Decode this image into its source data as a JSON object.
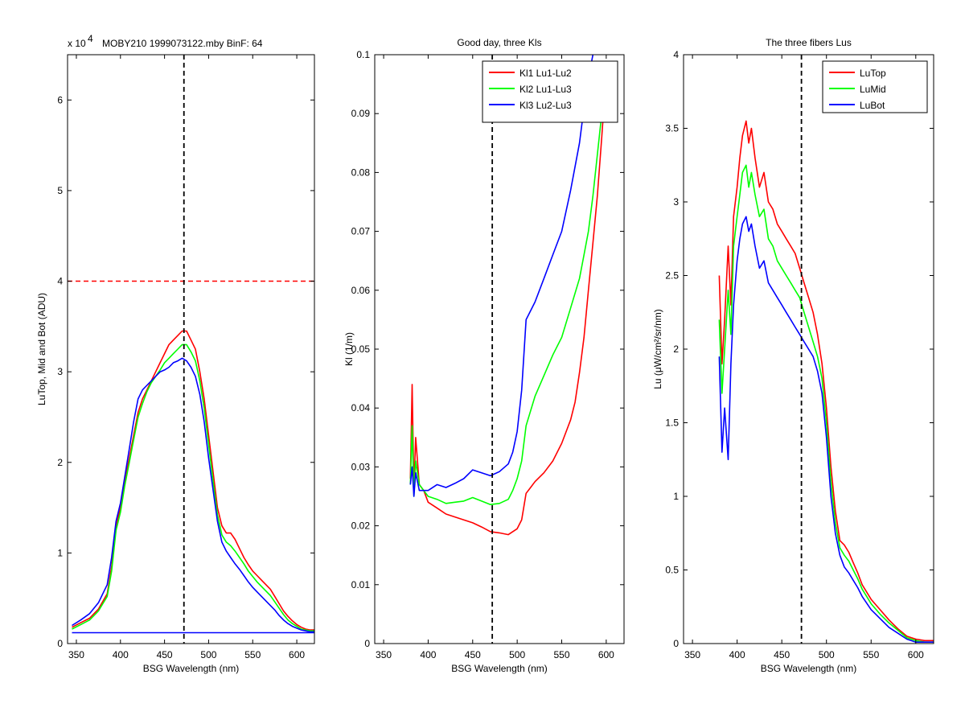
{
  "figure": {
    "background": "#ffffff"
  },
  "colors": {
    "red": "#ff0000",
    "green": "#00ff00",
    "blue": "#0000ff",
    "black": "#000000"
  },
  "chart_data": [
    {
      "type": "line",
      "title": "MOBY210  1999073122.mby BinF: 64",
      "exponent_label": "x 10",
      "exponent_power": "4",
      "xlabel": "BSG Wavelength (nm)",
      "ylabel": "LuTop, Mid and Bot (ADU)",
      "xlim": [
        340,
        620
      ],
      "ylim": [
        0,
        6.5
      ],
      "xticks": [
        350,
        400,
        450,
        500,
        550,
        600
      ],
      "yticks": [
        0,
        1,
        2,
        3,
        4,
        5,
        6
      ],
      "vline": {
        "x": 472,
        "color": "#000000",
        "style": "dashed"
      },
      "hline": {
        "y": 4,
        "color": "#ff0000",
        "style": "dashed"
      },
      "series": [
        {
          "color": "#ff0000",
          "x": [
            345,
            355,
            365,
            375,
            385,
            390,
            395,
            400,
            405,
            410,
            415,
            420,
            425,
            430,
            435,
            440,
            445,
            450,
            455,
            460,
            465,
            470,
            475,
            480,
            485,
            490,
            495,
            500,
            505,
            510,
            515,
            520,
            525,
            530,
            535,
            540,
            545,
            550,
            555,
            560,
            565,
            570,
            575,
            580,
            585,
            590,
            595,
            600,
            605,
            610,
            615,
            620
          ],
          "y": [
            0.18,
            0.23,
            0.28,
            0.38,
            0.55,
            0.85,
            1.3,
            1.5,
            1.8,
            2.05,
            2.3,
            2.55,
            2.7,
            2.8,
            2.9,
            3.0,
            3.1,
            3.2,
            3.3,
            3.35,
            3.4,
            3.45,
            3.45,
            3.35,
            3.25,
            3.0,
            2.7,
            2.3,
            1.9,
            1.5,
            1.3,
            1.22,
            1.22,
            1.15,
            1.05,
            0.95,
            0.87,
            0.8,
            0.75,
            0.7,
            0.65,
            0.6,
            0.52,
            0.44,
            0.36,
            0.3,
            0.25,
            0.21,
            0.18,
            0.16,
            0.15,
            0.15
          ]
        },
        {
          "color": "#00ff00",
          "x": [
            345,
            355,
            365,
            375,
            385,
            390,
            395,
            400,
            405,
            410,
            415,
            420,
            425,
            430,
            435,
            440,
            445,
            450,
            455,
            460,
            465,
            470,
            475,
            480,
            485,
            490,
            495,
            500,
            505,
            510,
            515,
            520,
            525,
            530,
            535,
            540,
            545,
            550,
            555,
            560,
            565,
            570,
            575,
            580,
            585,
            590,
            595,
            600,
            605,
            610,
            615,
            620
          ],
          "y": [
            0.16,
            0.21,
            0.26,
            0.36,
            0.52,
            0.8,
            1.25,
            1.45,
            1.75,
            2.0,
            2.25,
            2.5,
            2.65,
            2.78,
            2.88,
            2.95,
            3.02,
            3.1,
            3.15,
            3.2,
            3.25,
            3.3,
            3.3,
            3.22,
            3.12,
            2.9,
            2.6,
            2.2,
            1.8,
            1.42,
            1.2,
            1.12,
            1.08,
            1.02,
            0.95,
            0.88,
            0.8,
            0.74,
            0.68,
            0.63,
            0.58,
            0.53,
            0.46,
            0.39,
            0.32,
            0.26,
            0.22,
            0.19,
            0.16,
            0.15,
            0.14,
            0.14
          ]
        },
        {
          "color": "#0000ff",
          "x": [
            345,
            355,
            365,
            375,
            385,
            390,
            395,
            400,
            405,
            410,
            415,
            420,
            425,
            430,
            435,
            440,
            445,
            450,
            455,
            460,
            465,
            470,
            475,
            480,
            485,
            490,
            495,
            500,
            505,
            510,
            515,
            520,
            525,
            530,
            535,
            540,
            545,
            550,
            555,
            560,
            565,
            570,
            575,
            580,
            585,
            590,
            595,
            600,
            605,
            610,
            615,
            620
          ],
          "y": [
            0.2,
            0.26,
            0.33,
            0.45,
            0.65,
            0.95,
            1.35,
            1.55,
            1.85,
            2.15,
            2.45,
            2.7,
            2.8,
            2.85,
            2.9,
            2.95,
            3.0,
            3.02,
            3.05,
            3.1,
            3.12,
            3.15,
            3.12,
            3.05,
            2.95,
            2.75,
            2.45,
            2.05,
            1.7,
            1.35,
            1.12,
            1.02,
            0.95,
            0.88,
            0.82,
            0.75,
            0.68,
            0.62,
            0.57,
            0.52,
            0.47,
            0.42,
            0.37,
            0.31,
            0.26,
            0.22,
            0.19,
            0.17,
            0.15,
            0.14,
            0.13,
            0.13
          ]
        },
        {
          "color": "#0000ff",
          "x": [
            345,
            620
          ],
          "y": [
            0.12,
            0.12
          ]
        }
      ]
    },
    {
      "type": "line",
      "title": "Good day, three Kls",
      "xlabel": "BSG Wavelength (nm)",
      "ylabel": "Kl (1/m)",
      "xlim": [
        340,
        620
      ],
      "ylim": [
        0,
        0.1
      ],
      "xticks": [
        350,
        400,
        450,
        500,
        550,
        600
      ],
      "yticks": [
        0,
        0.01,
        0.02,
        0.03,
        0.04,
        0.05,
        0.06,
        0.07,
        0.08,
        0.09,
        0.1
      ],
      "vline": {
        "x": 472,
        "color": "#000000",
        "style": "dashed"
      },
      "legend": {
        "position": "top-right",
        "entries": [
          "Kl1 Lu1-Lu2",
          "Kl2 Lu1-Lu3",
          "Kl3 Lu2-Lu3"
        ]
      },
      "series": [
        {
          "name": "Kl1 Lu1-Lu2",
          "color": "#ff0000",
          "x": [
            380,
            382,
            384,
            386,
            390,
            395,
            400,
            410,
            420,
            430,
            440,
            450,
            460,
            470,
            480,
            490,
            495,
            500,
            505,
            510,
            515,
            520,
            530,
            540,
            550,
            560,
            565,
            570,
            575,
            580,
            585,
            590,
            595,
            600
          ],
          "y": [
            0.028,
            0.044,
            0.026,
            0.035,
            0.027,
            0.026,
            0.024,
            0.023,
            0.022,
            0.0215,
            0.021,
            0.0205,
            0.0198,
            0.019,
            0.0188,
            0.0185,
            0.019,
            0.0195,
            0.021,
            0.0255,
            0.0265,
            0.0275,
            0.029,
            0.031,
            0.034,
            0.038,
            0.041,
            0.046,
            0.052,
            0.06,
            0.068,
            0.076,
            0.086,
            0.097
          ]
        },
        {
          "name": "Kl2 Lu1-Lu3",
          "color": "#00ff00",
          "x": [
            380,
            382,
            384,
            386,
            390,
            395,
            400,
            410,
            420,
            430,
            440,
            450,
            460,
            470,
            480,
            490,
            495,
            500,
            505,
            510,
            520,
            530,
            540,
            550,
            560,
            570,
            575,
            580,
            585,
            590,
            595,
            600
          ],
          "y": [
            0.027,
            0.037,
            0.025,
            0.031,
            0.027,
            0.026,
            0.025,
            0.0245,
            0.0238,
            0.024,
            0.0242,
            0.0248,
            0.0242,
            0.0236,
            0.0238,
            0.0245,
            0.026,
            0.028,
            0.031,
            0.037,
            0.042,
            0.0455,
            0.049,
            0.052,
            0.057,
            0.062,
            0.066,
            0.07,
            0.076,
            0.083,
            0.09,
            0.097
          ]
        },
        {
          "name": "Kl3 Lu2-Lu3",
          "color": "#0000ff",
          "x": [
            380,
            382,
            384,
            386,
            390,
            395,
            400,
            410,
            420,
            430,
            440,
            450,
            460,
            470,
            480,
            490,
            495,
            500,
            505,
            510,
            520,
            530,
            540,
            550,
            560,
            570,
            575,
            580,
            585
          ],
          "y": [
            0.027,
            0.03,
            0.025,
            0.029,
            0.026,
            0.026,
            0.026,
            0.027,
            0.0265,
            0.0272,
            0.028,
            0.0295,
            0.029,
            0.0285,
            0.0292,
            0.0305,
            0.0325,
            0.036,
            0.043,
            0.055,
            0.058,
            0.062,
            0.066,
            0.07,
            0.077,
            0.085,
            0.091,
            0.096,
            0.1
          ]
        }
      ]
    },
    {
      "type": "line",
      "title": "The three fibers Lus",
      "xlabel": "BSG Wavelength (nm)",
      "ylabel": "Lu (μW/cm²/sr/nm)",
      "xlim": [
        340,
        620
      ],
      "ylim": [
        0,
        4
      ],
      "xticks": [
        350,
        400,
        450,
        500,
        550,
        600
      ],
      "yticks": [
        0,
        0.5,
        1,
        1.5,
        2,
        2.5,
        3,
        3.5,
        4
      ],
      "vline": {
        "x": 472,
        "color": "#000000",
        "style": "dashed"
      },
      "legend": {
        "position": "top-right",
        "entries": [
          "LuTop",
          "LuMid",
          "LuBot"
        ]
      },
      "series": [
        {
          "name": "LuTop",
          "color": "#ff0000",
          "x": [
            380,
            383,
            386,
            390,
            393,
            396,
            400,
            403,
            406,
            410,
            413,
            416,
            420,
            425,
            430,
            435,
            440,
            445,
            450,
            455,
            460,
            465,
            470,
            475,
            480,
            485,
            490,
            495,
            500,
            505,
            510,
            515,
            520,
            525,
            530,
            535,
            540,
            550,
            560,
            570,
            580,
            590,
            600,
            610,
            620
          ],
          "y": [
            2.5,
            1.9,
            2.2,
            2.7,
            2.3,
            2.9,
            3.1,
            3.3,
            3.45,
            3.55,
            3.4,
            3.5,
            3.3,
            3.1,
            3.2,
            3.0,
            2.95,
            2.85,
            2.8,
            2.75,
            2.7,
            2.65,
            2.55,
            2.45,
            2.35,
            2.25,
            2.1,
            1.9,
            1.6,
            1.2,
            0.9,
            0.7,
            0.67,
            0.62,
            0.55,
            0.48,
            0.4,
            0.3,
            0.23,
            0.16,
            0.1,
            0.05,
            0.03,
            0.02,
            0.02
          ]
        },
        {
          "name": "LuMid",
          "color": "#00ff00",
          "x": [
            380,
            383,
            386,
            390,
            393,
            396,
            400,
            403,
            406,
            410,
            413,
            416,
            420,
            425,
            430,
            435,
            440,
            445,
            450,
            455,
            460,
            465,
            470,
            475,
            480,
            485,
            490,
            495,
            500,
            505,
            510,
            515,
            520,
            525,
            530,
            535,
            540,
            550,
            560,
            570,
            580,
            590,
            600,
            610,
            620
          ],
          "y": [
            2.2,
            1.7,
            2.0,
            2.4,
            2.1,
            2.7,
            2.9,
            3.05,
            3.2,
            3.25,
            3.1,
            3.2,
            3.05,
            2.9,
            2.95,
            2.75,
            2.7,
            2.6,
            2.55,
            2.5,
            2.45,
            2.4,
            2.35,
            2.25,
            2.15,
            2.05,
            1.95,
            1.8,
            1.5,
            1.1,
            0.82,
            0.65,
            0.6,
            0.56,
            0.5,
            0.44,
            0.37,
            0.27,
            0.2,
            0.14,
            0.09,
            0.04,
            0.02,
            0.01,
            0.01
          ]
        },
        {
          "name": "LuBot",
          "color": "#0000ff",
          "x": [
            380,
            383,
            386,
            390,
            393,
            396,
            400,
            403,
            406,
            410,
            413,
            416,
            420,
            425,
            430,
            435,
            440,
            445,
            450,
            455,
            460,
            465,
            470,
            475,
            480,
            485,
            490,
            495,
            500,
            505,
            510,
            515,
            520,
            525,
            530,
            535,
            540,
            550,
            560,
            570,
            580,
            590,
            600,
            610,
            620
          ],
          "y": [
            1.95,
            1.3,
            1.6,
            1.25,
            1.9,
            2.3,
            2.6,
            2.75,
            2.85,
            2.9,
            2.8,
            2.85,
            2.7,
            2.55,
            2.6,
            2.45,
            2.4,
            2.35,
            2.3,
            2.25,
            2.2,
            2.15,
            2.1,
            2.05,
            2.0,
            1.95,
            1.85,
            1.7,
            1.4,
            1.0,
            0.75,
            0.6,
            0.52,
            0.48,
            0.43,
            0.38,
            0.32,
            0.23,
            0.17,
            0.11,
            0.07,
            0.03,
            0.01,
            0.01,
            0.01
          ]
        }
      ]
    }
  ]
}
